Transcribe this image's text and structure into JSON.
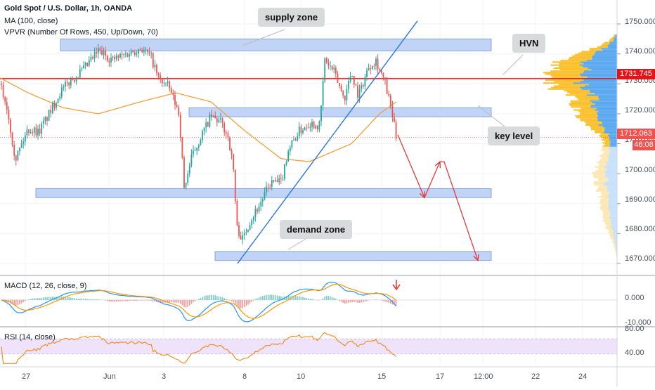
{
  "header": {
    "symbol_line": "Gold Spot / U.S. Dollar, 1h, OANDA",
    "ma_line": "MA (100, close)",
    "vpvr_line": "VPVR (Number Of Rows, 450, Up/Down, 70)"
  },
  "annotations": {
    "supply_zone": "supply zone",
    "hvn": "HVN",
    "key_level": "key level",
    "demand_zone": "demand zone"
  },
  "price_tags": {
    "hvn_price": "1731.745",
    "last_price": "1712.063",
    "countdown": "46:08"
  },
  "price_axis": [
    "1750.000",
    "1740.000",
    "1730.000",
    "1720.000",
    "1710.000",
    "1700.000",
    "1690.000",
    "1680.000",
    "1670.000"
  ],
  "macd": {
    "label": "MACD (12, 26, close, 9)",
    "axis": [
      "0.000",
      "-10.000"
    ]
  },
  "rsi": {
    "label": "RSI (14, close)",
    "axis": [
      "80.00",
      "40.00"
    ]
  },
  "time_axis": [
    "27",
    "Jun",
    "3",
    "8",
    "10",
    "15",
    "17",
    "12:00",
    "22",
    "24"
  ],
  "colors": {
    "up": "#26a69a",
    "down": "#ef5350",
    "ma": "#f0a03c",
    "zone_fill": "#b7ccf5",
    "zone_border": "#6e93e6",
    "trendline": "#2b78d9",
    "hvn_line": "#e3141a",
    "vpvr_up": "#5aa9f0",
    "vpvr_down": "#fbc02d",
    "rsi_band": "#efe3fb"
  },
  "chart_data": {
    "type": "candlestick",
    "symbol": "Gold Spot / U.S. Dollar",
    "timeframe": "1h",
    "ylim": [
      1666,
      1758
    ],
    "levels": {
      "hvn": 1731.745,
      "last": 1712.063
    },
    "zones": [
      {
        "name": "supply zone",
        "low": 1741,
        "high": 1745
      },
      {
        "name": "key level",
        "low": 1719,
        "high": 1722
      },
      {
        "name": "",
        "low": 1692,
        "high": 1695
      },
      {
        "name": "demand zone",
        "low": 1671,
        "high": 1674
      }
    ],
    "anchors": [
      {
        "t": 0,
        "p": 1730
      },
      {
        "t": 10,
        "p": 1722
      },
      {
        "t": 22,
        "p": 1705
      },
      {
        "t": 40,
        "p": 1715
      },
      {
        "t": 55,
        "p": 1714
      },
      {
        "t": 70,
        "p": 1720
      },
      {
        "t": 85,
        "p": 1727
      },
      {
        "t": 100,
        "p": 1731
      },
      {
        "t": 120,
        "p": 1735
      },
      {
        "t": 140,
        "p": 1741
      },
      {
        "t": 160,
        "p": 1738
      },
      {
        "t": 180,
        "p": 1740
      },
      {
        "t": 200,
        "p": 1742
      },
      {
        "t": 215,
        "p": 1739
      },
      {
        "t": 225,
        "p": 1732
      },
      {
        "t": 240,
        "p": 1729
      },
      {
        "t": 255,
        "p": 1720
      },
      {
        "t": 262,
        "p": 1695
      },
      {
        "t": 272,
        "p": 1705
      },
      {
        "t": 285,
        "p": 1712
      },
      {
        "t": 300,
        "p": 1719
      },
      {
        "t": 315,
        "p": 1717
      },
      {
        "t": 325,
        "p": 1712
      },
      {
        "t": 332,
        "p": 1702
      },
      {
        "t": 337,
        "p": 1682
      },
      {
        "t": 345,
        "p": 1678
      },
      {
        "t": 355,
        "p": 1684
      },
      {
        "t": 370,
        "p": 1690
      },
      {
        "t": 385,
        "p": 1697
      },
      {
        "t": 400,
        "p": 1697
      },
      {
        "t": 410,
        "p": 1708
      },
      {
        "t": 425,
        "p": 1714
      },
      {
        "t": 440,
        "p": 1717
      },
      {
        "t": 455,
        "p": 1716
      },
      {
        "t": 462,
        "p": 1738
      },
      {
        "t": 475,
        "p": 1734
      },
      {
        "t": 490,
        "p": 1725
      },
      {
        "t": 500,
        "p": 1734
      },
      {
        "t": 510,
        "p": 1726
      },
      {
        "t": 525,
        "p": 1736
      },
      {
        "t": 535,
        "p": 1738
      },
      {
        "t": 548,
        "p": 1730
      },
      {
        "t": 556,
        "p": 1722
      },
      {
        "t": 564,
        "p": 1712
      }
    ],
    "ma_path": [
      {
        "t": 0,
        "p": 1732
      },
      {
        "t": 40,
        "p": 1727
      },
      {
        "t": 90,
        "p": 1722
      },
      {
        "t": 140,
        "p": 1720
      },
      {
        "t": 200,
        "p": 1724
      },
      {
        "t": 250,
        "p": 1727
      },
      {
        "t": 300,
        "p": 1724
      },
      {
        "t": 350,
        "p": 1714
      },
      {
        "t": 400,
        "p": 1705
      },
      {
        "t": 440,
        "p": 1704
      },
      {
        "t": 500,
        "p": 1710
      },
      {
        "t": 540,
        "p": 1720
      },
      {
        "t": 564,
        "p": 1724
      }
    ],
    "trendline": [
      {
        "t": 338,
        "p": 1670
      },
      {
        "t": 594,
        "p": 1751
      }
    ],
    "projection": [
      {
        "t": 566,
        "p": 1713
      },
      {
        "t": 604,
        "p": 1692
      },
      {
        "t": 626,
        "p": 1704
      },
      {
        "t": 632,
        "p": 1704
      },
      {
        "t": 680,
        "p": 1671
      }
    ],
    "time_ticks": [
      {
        "label": "27",
        "t": 36
      },
      {
        "label": "Jun",
        "t": 155
      },
      {
        "label": "3",
        "t": 233
      },
      {
        "label": "8",
        "t": 348
      },
      {
        "label": "10",
        "t": 428
      },
      {
        "label": "15",
        "t": 543
      },
      {
        "label": "17",
        "t": 626
      },
      {
        "label": "12:00",
        "t": 687
      },
      {
        "label": "22",
        "t": 762
      },
      {
        "label": "24",
        "t": 829
      }
    ],
    "macd_range": [
      -12,
      10
    ],
    "rsi_levels": {
      "upper": 70,
      "lower": 30
    }
  }
}
